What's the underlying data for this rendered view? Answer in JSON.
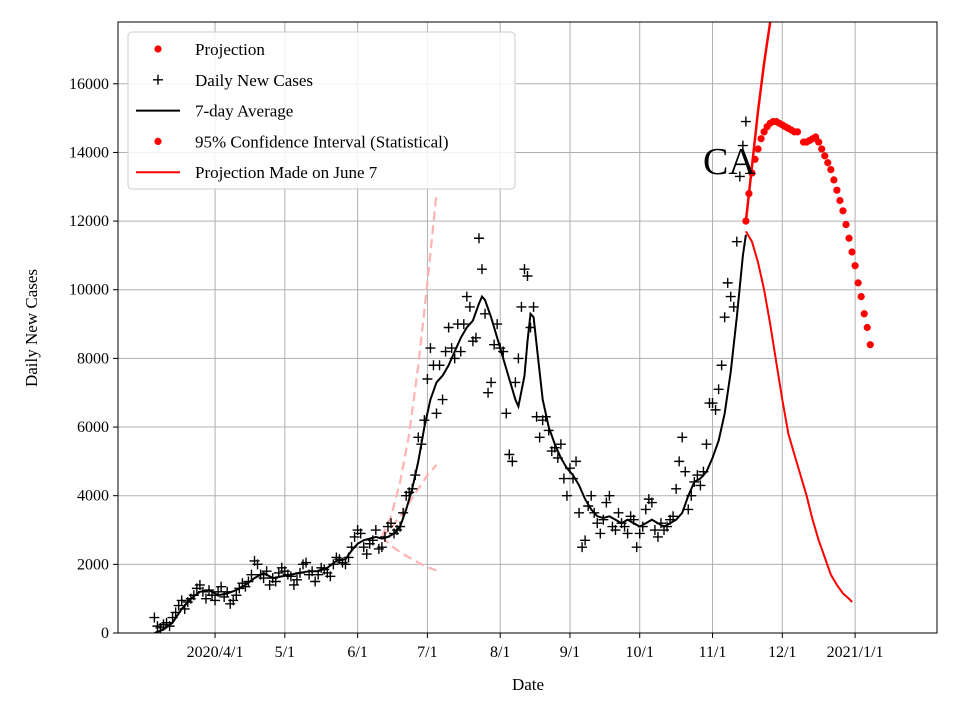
{
  "chart_data": {
    "type": "line",
    "title": "",
    "annotation": "CA",
    "xlabel": "Date",
    "ylabel": "Daily New Cases",
    "x_unit": "day index from 2020-03-01",
    "xlim": [
      -10,
      260
    ],
    "ylim": [
      0,
      17800
    ],
    "grid": true,
    "legend_position": "top-left",
    "x_ticks": [
      {
        "x": 22,
        "label": "2020/4/1"
      },
      {
        "x": 45,
        "label": "5/1"
      },
      {
        "x": 69,
        "label": "6/1"
      },
      {
        "x": 92,
        "label": "7/1"
      },
      {
        "x": 116,
        "label": "8/1"
      },
      {
        "x": 139,
        "label": "9/1"
      },
      {
        "x": 162,
        "label": "10/1"
      },
      {
        "x": 186,
        "label": "11/1"
      },
      {
        "x": 209,
        "label": "12/1"
      },
      {
        "x": 233,
        "label": "2021/1/1"
      }
    ],
    "y_ticks": [
      0,
      2000,
      4000,
      6000,
      8000,
      10000,
      12000,
      14000,
      16000
    ],
    "legend": [
      {
        "label": "Projection",
        "marker": "dot",
        "color": "#ff0000"
      },
      {
        "label": "Daily New Cases",
        "marker": "plus",
        "color": "#000000"
      },
      {
        "label": "7-day Average",
        "marker": "line",
        "color": "#000000"
      },
      {
        "label": "95% Confidence Interval (Statistical)",
        "marker": "dot",
        "color": "#ff0000"
      },
      {
        "label": "Projection Made on June 7",
        "marker": "line",
        "color": "#ff0000"
      }
    ],
    "colors": {
      "cases": "#000000",
      "average": "#000000",
      "projection": "#ff0000",
      "june_projection": "#ffb3b3"
    },
    "daily_new_cases": [
      [
        2,
        450
      ],
      [
        3,
        200
      ],
      [
        4,
        150
      ],
      [
        5,
        250
      ],
      [
        6,
        300
      ],
      [
        7,
        200
      ],
      [
        8,
        450
      ],
      [
        9,
        600
      ],
      [
        10,
        800
      ],
      [
        11,
        950
      ],
      [
        12,
        700
      ],
      [
        13,
        900
      ],
      [
        14,
        1000
      ],
      [
        15,
        1100
      ],
      [
        16,
        1300
      ],
      [
        17,
        1400
      ],
      [
        18,
        1200
      ],
      [
        19,
        1000
      ],
      [
        20,
        1250
      ],
      [
        21,
        1100
      ],
      [
        22,
        950
      ],
      [
        23,
        1200
      ],
      [
        24,
        1350
      ],
      [
        25,
        1050
      ],
      [
        26,
        1200
      ],
      [
        27,
        850
      ],
      [
        28,
        950
      ],
      [
        29,
        1100
      ],
      [
        30,
        1300
      ],
      [
        31,
        1450
      ],
      [
        32,
        1350
      ],
      [
        33,
        1500
      ],
      [
        34,
        1700
      ],
      [
        35,
        2100
      ],
      [
        36,
        2000
      ],
      [
        37,
        1700
      ],
      [
        38,
        1600
      ],
      [
        39,
        1800
      ],
      [
        40,
        1400
      ],
      [
        41,
        1600
      ],
      [
        42,
        1500
      ],
      [
        43,
        1750
      ],
      [
        44,
        1900
      ],
      [
        45,
        1800
      ],
      [
        46,
        1700
      ],
      [
        47,
        1650
      ],
      [
        48,
        1400
      ],
      [
        49,
        1550
      ],
      [
        50,
        1750
      ],
      [
        51,
        2000
      ],
      [
        52,
        2050
      ],
      [
        53,
        1700
      ],
      [
        54,
        1800
      ],
      [
        55,
        1500
      ],
      [
        56,
        1700
      ],
      [
        57,
        1900
      ],
      [
        58,
        1850
      ],
      [
        59,
        1750
      ],
      [
        60,
        1650
      ],
      [
        61,
        2000
      ],
      [
        62,
        2200
      ],
      [
        63,
        2150
      ],
      [
        64,
        2050
      ],
      [
        65,
        2000
      ],
      [
        66,
        2200
      ],
      [
        67,
        2500
      ],
      [
        68,
        2800
      ],
      [
        69,
        3000
      ],
      [
        70,
        2900
      ],
      [
        71,
        2500
      ],
      [
        72,
        2300
      ],
      [
        73,
        2600
      ],
      [
        74,
        2700
      ],
      [
        75,
        3000
      ],
      [
        76,
        2450
      ],
      [
        77,
        2500
      ],
      [
        78,
        2800
      ],
      [
        79,
        3100
      ],
      [
        80,
        3200
      ],
      [
        81,
        2900
      ],
      [
        82,
        3000
      ],
      [
        83,
        3100
      ],
      [
        84,
        3500
      ],
      [
        85,
        4000
      ],
      [
        86,
        4100
      ],
      [
        87,
        4200
      ],
      [
        88,
        4600
      ],
      [
        89,
        5700
      ],
      [
        90,
        5500
      ],
      [
        91,
        6200
      ],
      [
        92,
        7400
      ],
      [
        93,
        8300
      ],
      [
        94,
        7800
      ],
      [
        95,
        6400
      ],
      [
        96,
        7800
      ],
      [
        97,
        6800
      ],
      [
        98,
        8200
      ],
      [
        99,
        8900
      ],
      [
        100,
        8300
      ],
      [
        101,
        8000
      ],
      [
        102,
        9000
      ],
      [
        103,
        8200
      ],
      [
        104,
        9000
      ],
      [
        105,
        9800
      ],
      [
        106,
        9500
      ],
      [
        107,
        8500
      ],
      [
        108,
        8600
      ],
      [
        109,
        11500
      ],
      [
        110,
        10600
      ],
      [
        111,
        9300
      ],
      [
        112,
        7000
      ],
      [
        113,
        7300
      ],
      [
        114,
        8400
      ],
      [
        115,
        9000
      ],
      [
        116,
        8300
      ],
      [
        117,
        8200
      ],
      [
        118,
        6400
      ],
      [
        119,
        5200
      ],
      [
        120,
        5000
      ],
      [
        121,
        7300
      ],
      [
        122,
        8000
      ],
      [
        123,
        9500
      ],
      [
        124,
        10600
      ],
      [
        125,
        10400
      ],
      [
        126,
        8900
      ],
      [
        127,
        9500
      ],
      [
        128,
        6300
      ],
      [
        129,
        5700
      ],
      [
        130,
        6200
      ],
      [
        131,
        6300
      ],
      [
        132,
        5900
      ],
      [
        133,
        5300
      ],
      [
        134,
        5400
      ],
      [
        135,
        5100
      ],
      [
        136,
        5500
      ],
      [
        137,
        4500
      ],
      [
        138,
        4000
      ],
      [
        139,
        4800
      ],
      [
        140,
        4500
      ],
      [
        141,
        5000
      ],
      [
        142,
        3500
      ],
      [
        143,
        2500
      ],
      [
        144,
        2700
      ],
      [
        145,
        3700
      ],
      [
        146,
        4000
      ],
      [
        147,
        3500
      ],
      [
        148,
        3200
      ],
      [
        149,
        2900
      ],
      [
        150,
        3300
      ],
      [
        151,
        3800
      ],
      [
        152,
        4000
      ],
      [
        153,
        3100
      ],
      [
        154,
        3000
      ],
      [
        155,
        3500
      ],
      [
        156,
        3200
      ],
      [
        157,
        3100
      ],
      [
        158,
        2900
      ],
      [
        159,
        3400
      ],
      [
        160,
        3300
      ],
      [
        161,
        2500
      ],
      [
        162,
        2900
      ],
      [
        163,
        3100
      ],
      [
        164,
        3600
      ],
      [
        165,
        3900
      ],
      [
        166,
        3800
      ],
      [
        167,
        3000
      ],
      [
        168,
        2800
      ],
      [
        169,
        3200
      ],
      [
        170,
        3000
      ],
      [
        171,
        3100
      ],
      [
        172,
        3300
      ],
      [
        173,
        3400
      ],
      [
        174,
        4200
      ],
      [
        175,
        5000
      ],
      [
        176,
        5700
      ],
      [
        177,
        4700
      ],
      [
        178,
        3600
      ],
      [
        179,
        4000
      ],
      [
        180,
        4400
      ],
      [
        181,
        4600
      ],
      [
        182,
        4300
      ],
      [
        183,
        4700
      ],
      [
        184,
        5500
      ],
      [
        185,
        6700
      ],
      [
        186,
        6700
      ],
      [
        187,
        6500
      ],
      [
        188,
        7100
      ],
      [
        189,
        7800
      ],
      [
        190,
        9200
      ],
      [
        191,
        10200
      ],
      [
        192,
        9800
      ],
      [
        193,
        9500
      ],
      [
        194,
        11400
      ],
      [
        195,
        13300
      ],
      [
        196,
        14200
      ],
      [
        197,
        14900
      ]
    ],
    "seven_day_average": [
      [
        2,
        0
      ],
      [
        5,
        100
      ],
      [
        8,
        300
      ],
      [
        11,
        700
      ],
      [
        14,
        1000
      ],
      [
        17,
        1200
      ],
      [
        20,
        1250
      ],
      [
        23,
        1100
      ],
      [
        26,
        1150
      ],
      [
        29,
        1250
      ],
      [
        32,
        1400
      ],
      [
        35,
        1600
      ],
      [
        38,
        1750
      ],
      [
        41,
        1600
      ],
      [
        44,
        1650
      ],
      [
        47,
        1700
      ],
      [
        50,
        1750
      ],
      [
        53,
        1800
      ],
      [
        56,
        1800
      ],
      [
        59,
        1900
      ],
      [
        62,
        2100
      ],
      [
        65,
        2150
      ],
      [
        67,
        2400
      ],
      [
        69,
        2600
      ],
      [
        71,
        2700
      ],
      [
        73,
        2750
      ],
      [
        75,
        2800
      ],
      [
        77,
        2750
      ],
      [
        79,
        2800
      ],
      [
        81,
        2900
      ],
      [
        83,
        3100
      ],
      [
        85,
        3600
      ],
      [
        87,
        4200
      ],
      [
        89,
        5000
      ],
      [
        91,
        6000
      ],
      [
        93,
        6800
      ],
      [
        95,
        7300
      ],
      [
        97,
        7500
      ],
      [
        99,
        7800
      ],
      [
        101,
        8200
      ],
      [
        103,
        8600
      ],
      [
        105,
        8900
      ],
      [
        107,
        9100
      ],
      [
        109,
        9600
      ],
      [
        110,
        9800
      ],
      [
        111,
        9700
      ],
      [
        113,
        9200
      ],
      [
        115,
        8600
      ],
      [
        117,
        8000
      ],
      [
        119,
        7400
      ],
      [
        121,
        6800
      ],
      [
        122,
        6600
      ],
      [
        124,
        7500
      ],
      [
        125,
        8500
      ],
      [
        126,
        9300
      ],
      [
        127,
        9200
      ],
      [
        128,
        8400
      ],
      [
        130,
        6800
      ],
      [
        132,
        6000
      ],
      [
        134,
        5500
      ],
      [
        136,
        5100
      ],
      [
        138,
        4800
      ],
      [
        140,
        4600
      ],
      [
        142,
        4300
      ],
      [
        144,
        3900
      ],
      [
        146,
        3600
      ],
      [
        148,
        3400
      ],
      [
        150,
        3350
      ],
      [
        152,
        3400
      ],
      [
        154,
        3300
      ],
      [
        156,
        3200
      ],
      [
        158,
        3300
      ],
      [
        160,
        3200
      ],
      [
        162,
        3100
      ],
      [
        164,
        3200
      ],
      [
        166,
        3300
      ],
      [
        168,
        3200
      ],
      [
        170,
        3100
      ],
      [
        172,
        3200
      ],
      [
        174,
        3300
      ],
      [
        176,
        3500
      ],
      [
        178,
        4000
      ],
      [
        180,
        4400
      ],
      [
        182,
        4500
      ],
      [
        184,
        4700
      ],
      [
        186,
        5100
      ],
      [
        188,
        5600
      ],
      [
        190,
        6400
      ],
      [
        192,
        7600
      ],
      [
        194,
        9200
      ],
      [
        196,
        11000
      ],
      [
        197,
        11600
      ]
    ],
    "projection": [
      [
        197,
        12000
      ],
      [
        198,
        12800
      ],
      [
        199,
        13400
      ],
      [
        200,
        13800
      ],
      [
        201,
        14100
      ],
      [
        202,
        14400
      ],
      [
        203,
        14600
      ],
      [
        204,
        14750
      ],
      [
        205,
        14850
      ],
      [
        206,
        14900
      ],
      [
        207,
        14900
      ],
      [
        208,
        14850
      ],
      [
        209,
        14800
      ],
      [
        210,
        14750
      ],
      [
        211,
        14700
      ],
      [
        212,
        14650
      ],
      [
        213,
        14600
      ],
      [
        214,
        14600
      ],
      [
        216,
        14300
      ],
      [
        217,
        14300
      ],
      [
        218,
        14350
      ],
      [
        219,
        14400
      ],
      [
        220,
        14450
      ],
      [
        221,
        14300
      ],
      [
        222,
        14100
      ],
      [
        223,
        13900
      ],
      [
        224,
        13700
      ],
      [
        225,
        13500
      ],
      [
        226,
        13200
      ],
      [
        227,
        12900
      ],
      [
        228,
        12600
      ],
      [
        229,
        12300
      ],
      [
        230,
        11900
      ],
      [
        231,
        11500
      ],
      [
        232,
        11100
      ],
      [
        233,
        10700
      ],
      [
        234,
        10200
      ],
      [
        235,
        9800
      ],
      [
        236,
        9300
      ],
      [
        237,
        8900
      ],
      [
        238,
        8400
      ]
    ],
    "confidence_interval_upper": [
      [
        197,
        12000
      ],
      [
        199,
        13600
      ],
      [
        201,
        15200
      ],
      [
        203,
        16600
      ],
      [
        205,
        17800
      ]
    ],
    "projection_june_7": [
      [
        197,
        11700
      ],
      [
        199,
        11400
      ],
      [
        201,
        10800
      ],
      [
        203,
        10000
      ],
      [
        205,
        9000
      ],
      [
        207,
        7900
      ],
      [
        209,
        6800
      ],
      [
        211,
        5800
      ],
      [
        213,
        5200
      ],
      [
        215,
        4600
      ],
      [
        217,
        4000
      ],
      [
        219,
        3300
      ],
      [
        221,
        2700
      ],
      [
        223,
        2200
      ],
      [
        225,
        1700
      ],
      [
        227,
        1400
      ],
      [
        229,
        1150
      ],
      [
        231,
        1000
      ],
      [
        232,
        900
      ]
    ],
    "june7_band_upper": [
      [
        77,
        2800
      ],
      [
        80,
        3400
      ],
      [
        83,
        4400
      ],
      [
        86,
        5800
      ],
      [
        89,
        7800
      ],
      [
        92,
        10200
      ],
      [
        95,
        12800
      ]
    ],
    "june7_band_mid": [
      [
        77,
        2800
      ],
      [
        80,
        3050
      ],
      [
        83,
        3400
      ],
      [
        86,
        3800
      ],
      [
        89,
        4200
      ],
      [
        92,
        4600
      ],
      [
        95,
        4900
      ]
    ],
    "june7_band_lower": [
      [
        77,
        2800
      ],
      [
        80,
        2550
      ],
      [
        83,
        2350
      ],
      [
        86,
        2200
      ],
      [
        89,
        2050
      ],
      [
        92,
        1920
      ],
      [
        95,
        1820
      ]
    ]
  }
}
